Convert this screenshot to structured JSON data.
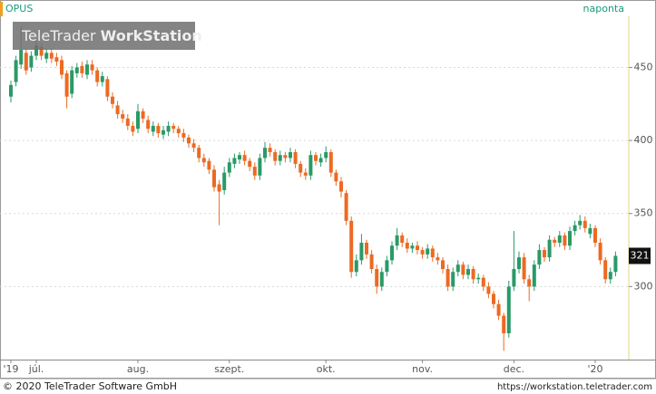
{
  "chart_data": {
    "type": "candlestick",
    "title": "OPUS",
    "subtitle": "naponta",
    "watermark": {
      "brand": "TeleTrader",
      "product": "WorkStation"
    },
    "footer": {
      "copyright": "© 2020 TeleTrader Software GmbH",
      "url": "https://workstation.teletrader.com"
    },
    "up_color": "#2a9a68",
    "down_color": "#ec6a22",
    "ylim": [
      250,
      485
    ],
    "yticks": [
      300,
      350,
      400,
      450
    ],
    "grid": true,
    "categories": [
      "'19",
      null,
      null,
      null,
      null,
      "júl.",
      null,
      null,
      null,
      null,
      null,
      null,
      null,
      null,
      null,
      null,
      null,
      null,
      null,
      null,
      null,
      null,
      null,
      null,
      null,
      "aug.",
      null,
      null,
      null,
      null,
      null,
      null,
      null,
      null,
      null,
      null,
      null,
      null,
      null,
      null,
      null,
      null,
      null,
      "szept.",
      null,
      null,
      null,
      null,
      null,
      null,
      null,
      null,
      null,
      null,
      null,
      null,
      null,
      null,
      null,
      null,
      null,
      null,
      "okt.",
      null,
      null,
      null,
      null,
      null,
      null,
      null,
      null,
      null,
      null,
      null,
      null,
      null,
      null,
      null,
      null,
      null,
      null,
      "nov.",
      null,
      null,
      null,
      null,
      null,
      null,
      null,
      null,
      null,
      null,
      null,
      null,
      null,
      null,
      null,
      null,
      null,
      "dec.",
      null,
      null,
      null,
      null,
      null,
      null,
      null,
      null,
      null,
      null,
      null,
      null,
      null,
      null,
      null,
      "'20",
      null,
      null,
      null,
      null
    ],
    "open": [
      430,
      440,
      452,
      460,
      450,
      458,
      464,
      456,
      460,
      457,
      455,
      446,
      432,
      446,
      451,
      445,
      452,
      448,
      440,
      442,
      430,
      424,
      418,
      415,
      410,
      408,
      420,
      414,
      406,
      410,
      404,
      406,
      410,
      408,
      405,
      402,
      398,
      395,
      388,
      386,
      380,
      370,
      366,
      378,
      384,
      387,
      390,
      386,
      382,
      376,
      388,
      395,
      392,
      386,
      390,
      388,
      392,
      384,
      378,
      376,
      390,
      385,
      388,
      392,
      378,
      372,
      364,
      345,
      310,
      318,
      330,
      322,
      312,
      300,
      310,
      318,
      328,
      335,
      330,
      326,
      328,
      325,
      322,
      326,
      320,
      318,
      312,
      300,
      310,
      315,
      308,
      312,
      305,
      306,
      300,
      295,
      288,
      280,
      268,
      300,
      312,
      320,
      305,
      300,
      315,
      325,
      320,
      332,
      330,
      335,
      328,
      338,
      342,
      345,
      336,
      340,
      330,
      318,
      305,
      310
    ],
    "high": [
      441,
      458,
      478,
      463,
      461,
      469,
      467,
      463,
      463,
      460,
      458,
      448,
      451,
      453,
      454,
      455,
      455,
      450,
      447,
      444,
      433,
      427,
      421,
      418,
      413,
      425,
      422,
      417,
      413,
      412,
      410,
      413,
      412,
      410,
      408,
      404,
      401,
      397,
      391,
      388,
      383,
      373,
      382,
      388,
      391,
      392,
      393,
      388,
      385,
      391,
      399,
      398,
      394,
      393,
      392,
      395,
      394,
      386,
      381,
      393,
      392,
      391,
      396,
      394,
      380,
      375,
      366,
      348,
      322,
      336,
      332,
      325,
      315,
      313,
      321,
      331,
      340,
      337,
      333,
      330,
      331,
      327,
      329,
      328,
      323,
      320,
      315,
      313,
      318,
      317,
      315,
      314,
      309,
      308,
      303,
      297,
      291,
      282,
      304,
      338,
      324,
      323,
      308,
      318,
      329,
      327,
      335,
      334,
      338,
      337,
      341,
      345,
      349,
      348,
      343,
      342,
      333,
      320,
      313,
      324
    ],
    "low": [
      426,
      437,
      449,
      445,
      447,
      455,
      455,
      453,
      453,
      451,
      442,
      422,
      429,
      443,
      443,
      442,
      445,
      437,
      437,
      427,
      422,
      415,
      412,
      407,
      403,
      405,
      412,
      405,
      403,
      402,
      401,
      403,
      405,
      402,
      399,
      395,
      392,
      385,
      382,
      377,
      365,
      342,
      363,
      375,
      381,
      384,
      383,
      379,
      373,
      373,
      385,
      389,
      383,
      383,
      385,
      385,
      381,
      375,
      373,
      373,
      383,
      382,
      385,
      375,
      369,
      361,
      342,
      306,
      307,
      315,
      319,
      309,
      295,
      297,
      307,
      315,
      325,
      327,
      323,
      323,
      322,
      319,
      319,
      317,
      315,
      309,
      297,
      297,
      307,
      305,
      305,
      302,
      302,
      297,
      292,
      285,
      277,
      256,
      265,
      297,
      309,
      302,
      290,
      297,
      312,
      317,
      317,
      327,
      327,
      325,
      325,
      335,
      339,
      337,
      333,
      327,
      315,
      302,
      302,
      307
    ],
    "close": [
      438,
      455,
      462,
      448,
      458,
      465,
      458,
      460,
      456,
      454,
      445,
      430,
      448,
      450,
      446,
      452,
      448,
      440,
      444,
      430,
      425,
      418,
      415,
      410,
      406,
      420,
      415,
      408,
      410,
      405,
      407,
      410,
      408,
      405,
      402,
      398,
      395,
      388,
      385,
      380,
      368,
      365,
      378,
      385,
      388,
      390,
      386,
      382,
      376,
      388,
      395,
      392,
      386,
      390,
      388,
      392,
      384,
      378,
      376,
      390,
      386,
      388,
      392,
      378,
      372,
      365,
      345,
      310,
      318,
      330,
      322,
      312,
      300,
      310,
      318,
      328,
      335,
      330,
      326,
      328,
      325,
      322,
      326,
      320,
      318,
      312,
      300,
      310,
      315,
      308,
      312,
      305,
      306,
      300,
      295,
      288,
      280,
      268,
      300,
      312,
      320,
      305,
      300,
      315,
      325,
      320,
      332,
      330,
      335,
      328,
      338,
      342,
      345,
      340,
      340,
      330,
      318,
      305,
      310,
      321
    ]
  }
}
